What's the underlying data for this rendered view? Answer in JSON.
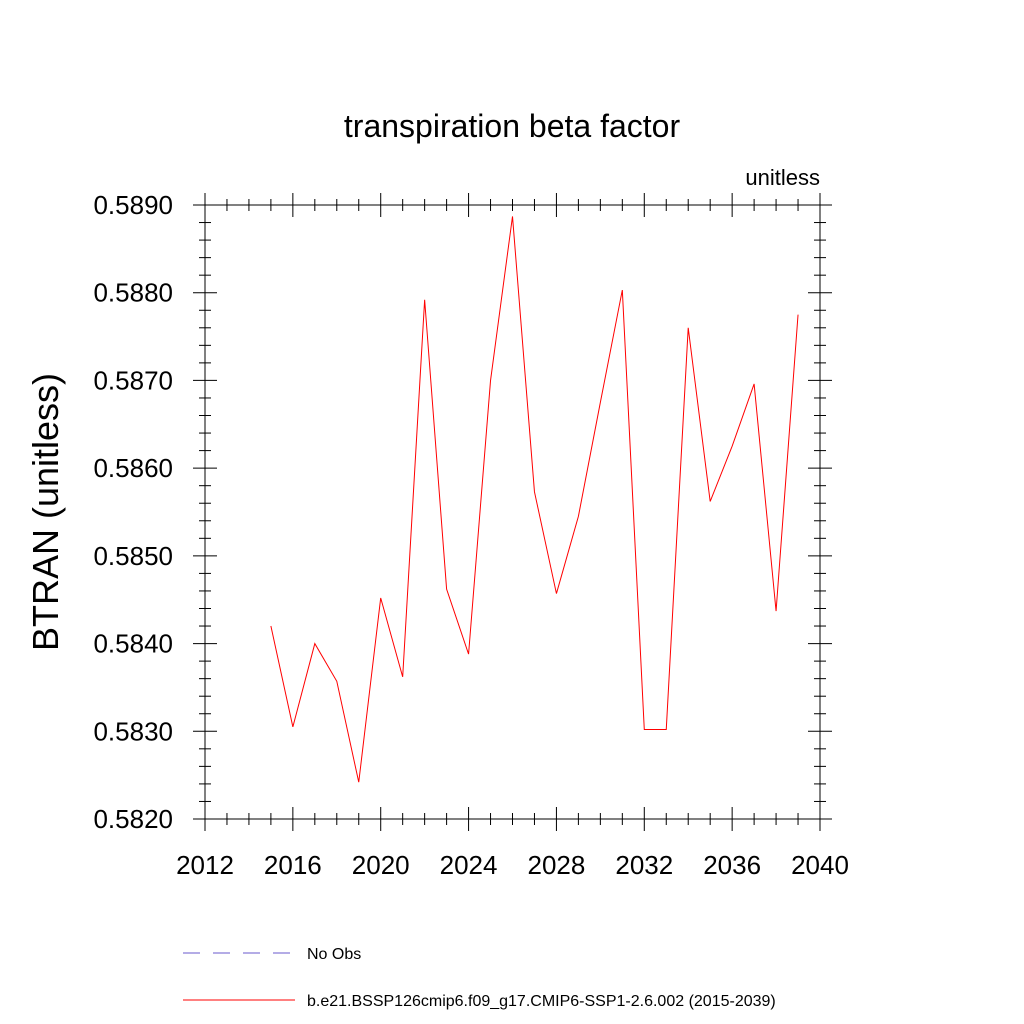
{
  "chart_data": {
    "type": "line",
    "title": "transpiration beta factor",
    "units_label": "unitless",
    "xlabel": "",
    "ylabel": "BTRAN  (unitless)",
    "xlim": [
      2012,
      2040
    ],
    "ylim": [
      0.582,
      0.589
    ],
    "x_ticks": [
      2012,
      2016,
      2020,
      2024,
      2028,
      2032,
      2036,
      2040
    ],
    "x_tick_labels": [
      "2012",
      "2016",
      "2020",
      "2024",
      "2028",
      "2032",
      "2036",
      "2040"
    ],
    "y_ticks": [
      0.582,
      0.583,
      0.584,
      0.585,
      0.586,
      0.587,
      0.588,
      0.589
    ],
    "y_tick_labels": [
      "0.5820",
      "0.5830",
      "0.5840",
      "0.5850",
      "0.5860",
      "0.5870",
      "0.5880",
      "0.5890"
    ],
    "grid": false,
    "series": [
      {
        "name": "b.e21.BSSP126cmip6.f09_g17.CMIP6-SSP1-2.6.002 (2015-2039)",
        "color": "#ff0000",
        "dash": "solid",
        "x": [
          2015,
          2016,
          2017,
          2018,
          2019,
          2020,
          2021,
          2022,
          2023,
          2024,
          2025,
          2026,
          2027,
          2028,
          2029,
          2030,
          2031,
          2032,
          2033,
          2034,
          2035,
          2036,
          2037,
          2038,
          2039
        ],
        "values": [
          0.5842,
          0.58305,
          0.584,
          0.58357,
          0.58242,
          0.58452,
          0.58362,
          0.58792,
          0.58462,
          0.58388,
          0.587,
          0.58887,
          0.58573,
          0.58457,
          0.58545,
          0.58675,
          0.58803,
          0.58302,
          0.58302,
          0.5876,
          0.58562,
          0.58625,
          0.58696,
          0.58437,
          0.58775
        ]
      }
    ],
    "legend": [
      {
        "label": "No Obs",
        "color": "#6a5acd",
        "dash": "dashed"
      },
      {
        "label": "b.e21.BSSP126cmip6.f09_g17.CMIP6-SSP1-2.6.002 (2015-2039)",
        "color": "#ff0000",
        "dash": "solid"
      }
    ],
    "legend_position": "bottom"
  }
}
